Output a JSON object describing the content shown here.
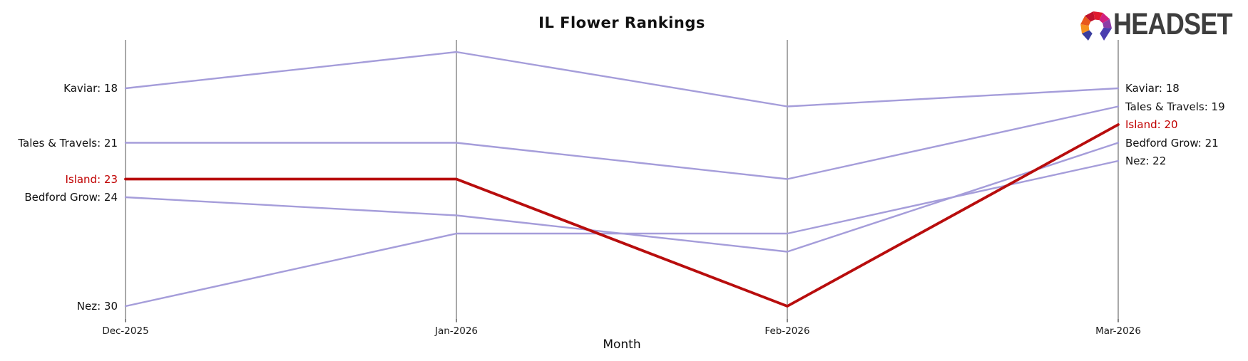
{
  "logo": {
    "text": "HEADSET"
  },
  "chart_data": {
    "type": "line",
    "subtype": "bump-ranking-chart",
    "title": "IL Flower Rankings",
    "xlabel": "Month",
    "x_categories": [
      "Dec-2025",
      "Jan-2026",
      "Feb-2026",
      "Mar-2026"
    ],
    "y_axis": {
      "metric": "rank",
      "inverted": true,
      "best_rank_shown": 16,
      "worst_rank_shown": 30,
      "tick_labels": "none"
    },
    "grid": "vertical-gridlines-at-each-month",
    "legend": "none",
    "series": [
      {
        "name": "Kaviar",
        "values": [
          18,
          16,
          19,
          18
        ],
        "color": "#a59dda",
        "highlighted": false,
        "left_label": "Kaviar: 18",
        "right_label": "Kaviar: 18"
      },
      {
        "name": "Tales & Travels",
        "values": [
          21,
          21,
          23,
          19
        ],
        "color": "#a59dda",
        "highlighted": false,
        "left_label": "Tales & Travels: 21",
        "right_label": "Tales & Travels: 19"
      },
      {
        "name": "Island",
        "values": [
          23,
          23,
          30,
          20
        ],
        "color": "#b80d0d",
        "highlighted": true,
        "left_label": "Island: 23",
        "right_label": "Island: 20"
      },
      {
        "name": "Bedford Grow",
        "values": [
          24,
          25,
          27,
          21
        ],
        "color": "#a59dda",
        "highlighted": false,
        "left_label": "Bedford Grow: 24",
        "right_label": "Bedford Grow: 21"
      },
      {
        "name": "Nez",
        "values": [
          30,
          26,
          26,
          22
        ],
        "color": "#a59dda",
        "highlighted": false,
        "left_label": "Nez: 30",
        "right_label": "Nez: 22"
      }
    ],
    "colors": {
      "line_default": "#a59dda",
      "line_highlight": "#b80d0d",
      "gridline": "#a9a9a9",
      "tick_mark": "#333333",
      "label_text": "#111111",
      "label_highlight": "#c00000"
    }
  }
}
